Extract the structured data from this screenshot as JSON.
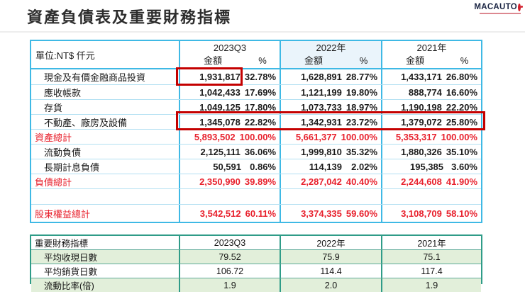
{
  "page": {
    "title": "資產負債表及重要財務指標"
  },
  "logo": {
    "brand": "MACAUTO"
  },
  "balance_table": {
    "unit_label": "單位:NT$ 仟元",
    "columns": [
      {
        "period": "2023Q3",
        "amount_label": "金額",
        "pct_label": "%"
      },
      {
        "period": "2022年",
        "amount_label": "金額",
        "pct_label": "%"
      },
      {
        "period": "2021年",
        "amount_label": "金額",
        "pct_label": "%"
      }
    ],
    "rows": [
      {
        "label": "現金及有價金融商品投資",
        "values": [
          "1,931,817",
          "32.78%",
          "1,628,891",
          "28.77%",
          "1,433,171",
          "26.80%"
        ]
      },
      {
        "label": "應收帳款",
        "values": [
          "1,042,433",
          "17.69%",
          "1,121,199",
          "19.80%",
          "888,774",
          "16.60%"
        ]
      },
      {
        "label": "存貨",
        "values": [
          "1,049,125",
          "17.80%",
          "1,073,733",
          "18.97%",
          "1,190,198",
          "22.20%"
        ]
      },
      {
        "label": "不動產、廠房及設備",
        "values": [
          "1,345,078",
          "22.82%",
          "1,342,931",
          "23.72%",
          "1,379,072",
          "25.80%"
        ]
      },
      {
        "label": "資產總計",
        "values": [
          "5,893,502",
          "100.00%",
          "5,661,377",
          "100.00%",
          "5,353,317",
          "100.00%"
        ]
      },
      {
        "label": "流動負債",
        "values": [
          "2,125,111",
          "36.06%",
          "1,999,810",
          "35.32%",
          "1,880,326",
          "35.10%"
        ]
      },
      {
        "label": "長期計息負債",
        "values": [
          "50,591",
          "0.86%",
          "114,139",
          "2.02%",
          "195,385",
          "3.60%"
        ]
      },
      {
        "label": "負債總計",
        "values": [
          "2,350,990",
          "39.89%",
          "2,287,042",
          "40.40%",
          "2,244,608",
          "41.90%"
        ]
      },
      {
        "label": "",
        "values": [
          "",
          "",
          "",
          "",
          "",
          ""
        ]
      },
      {
        "label": "股東權益總計",
        "values": [
          "3,542,512",
          "60.11%",
          "3,374,335",
          "59.60%",
          "3,108,709",
          "58.10%"
        ]
      }
    ]
  },
  "metrics_table": {
    "title": "重要財務指標",
    "periods": [
      "2023Q3",
      "2022年",
      "2021年"
    ],
    "rows": [
      {
        "label": "平均收現日數",
        "values": [
          "79.52",
          "75.9",
          "75.1"
        ]
      },
      {
        "label": "平均銷貨日數",
        "values": [
          "106.72",
          "114.4",
          "117.4"
        ]
      },
      {
        "label": "流動比率(倍)",
        "values": [
          "1.9",
          "2.0",
          "1.9"
        ]
      }
    ]
  }
}
